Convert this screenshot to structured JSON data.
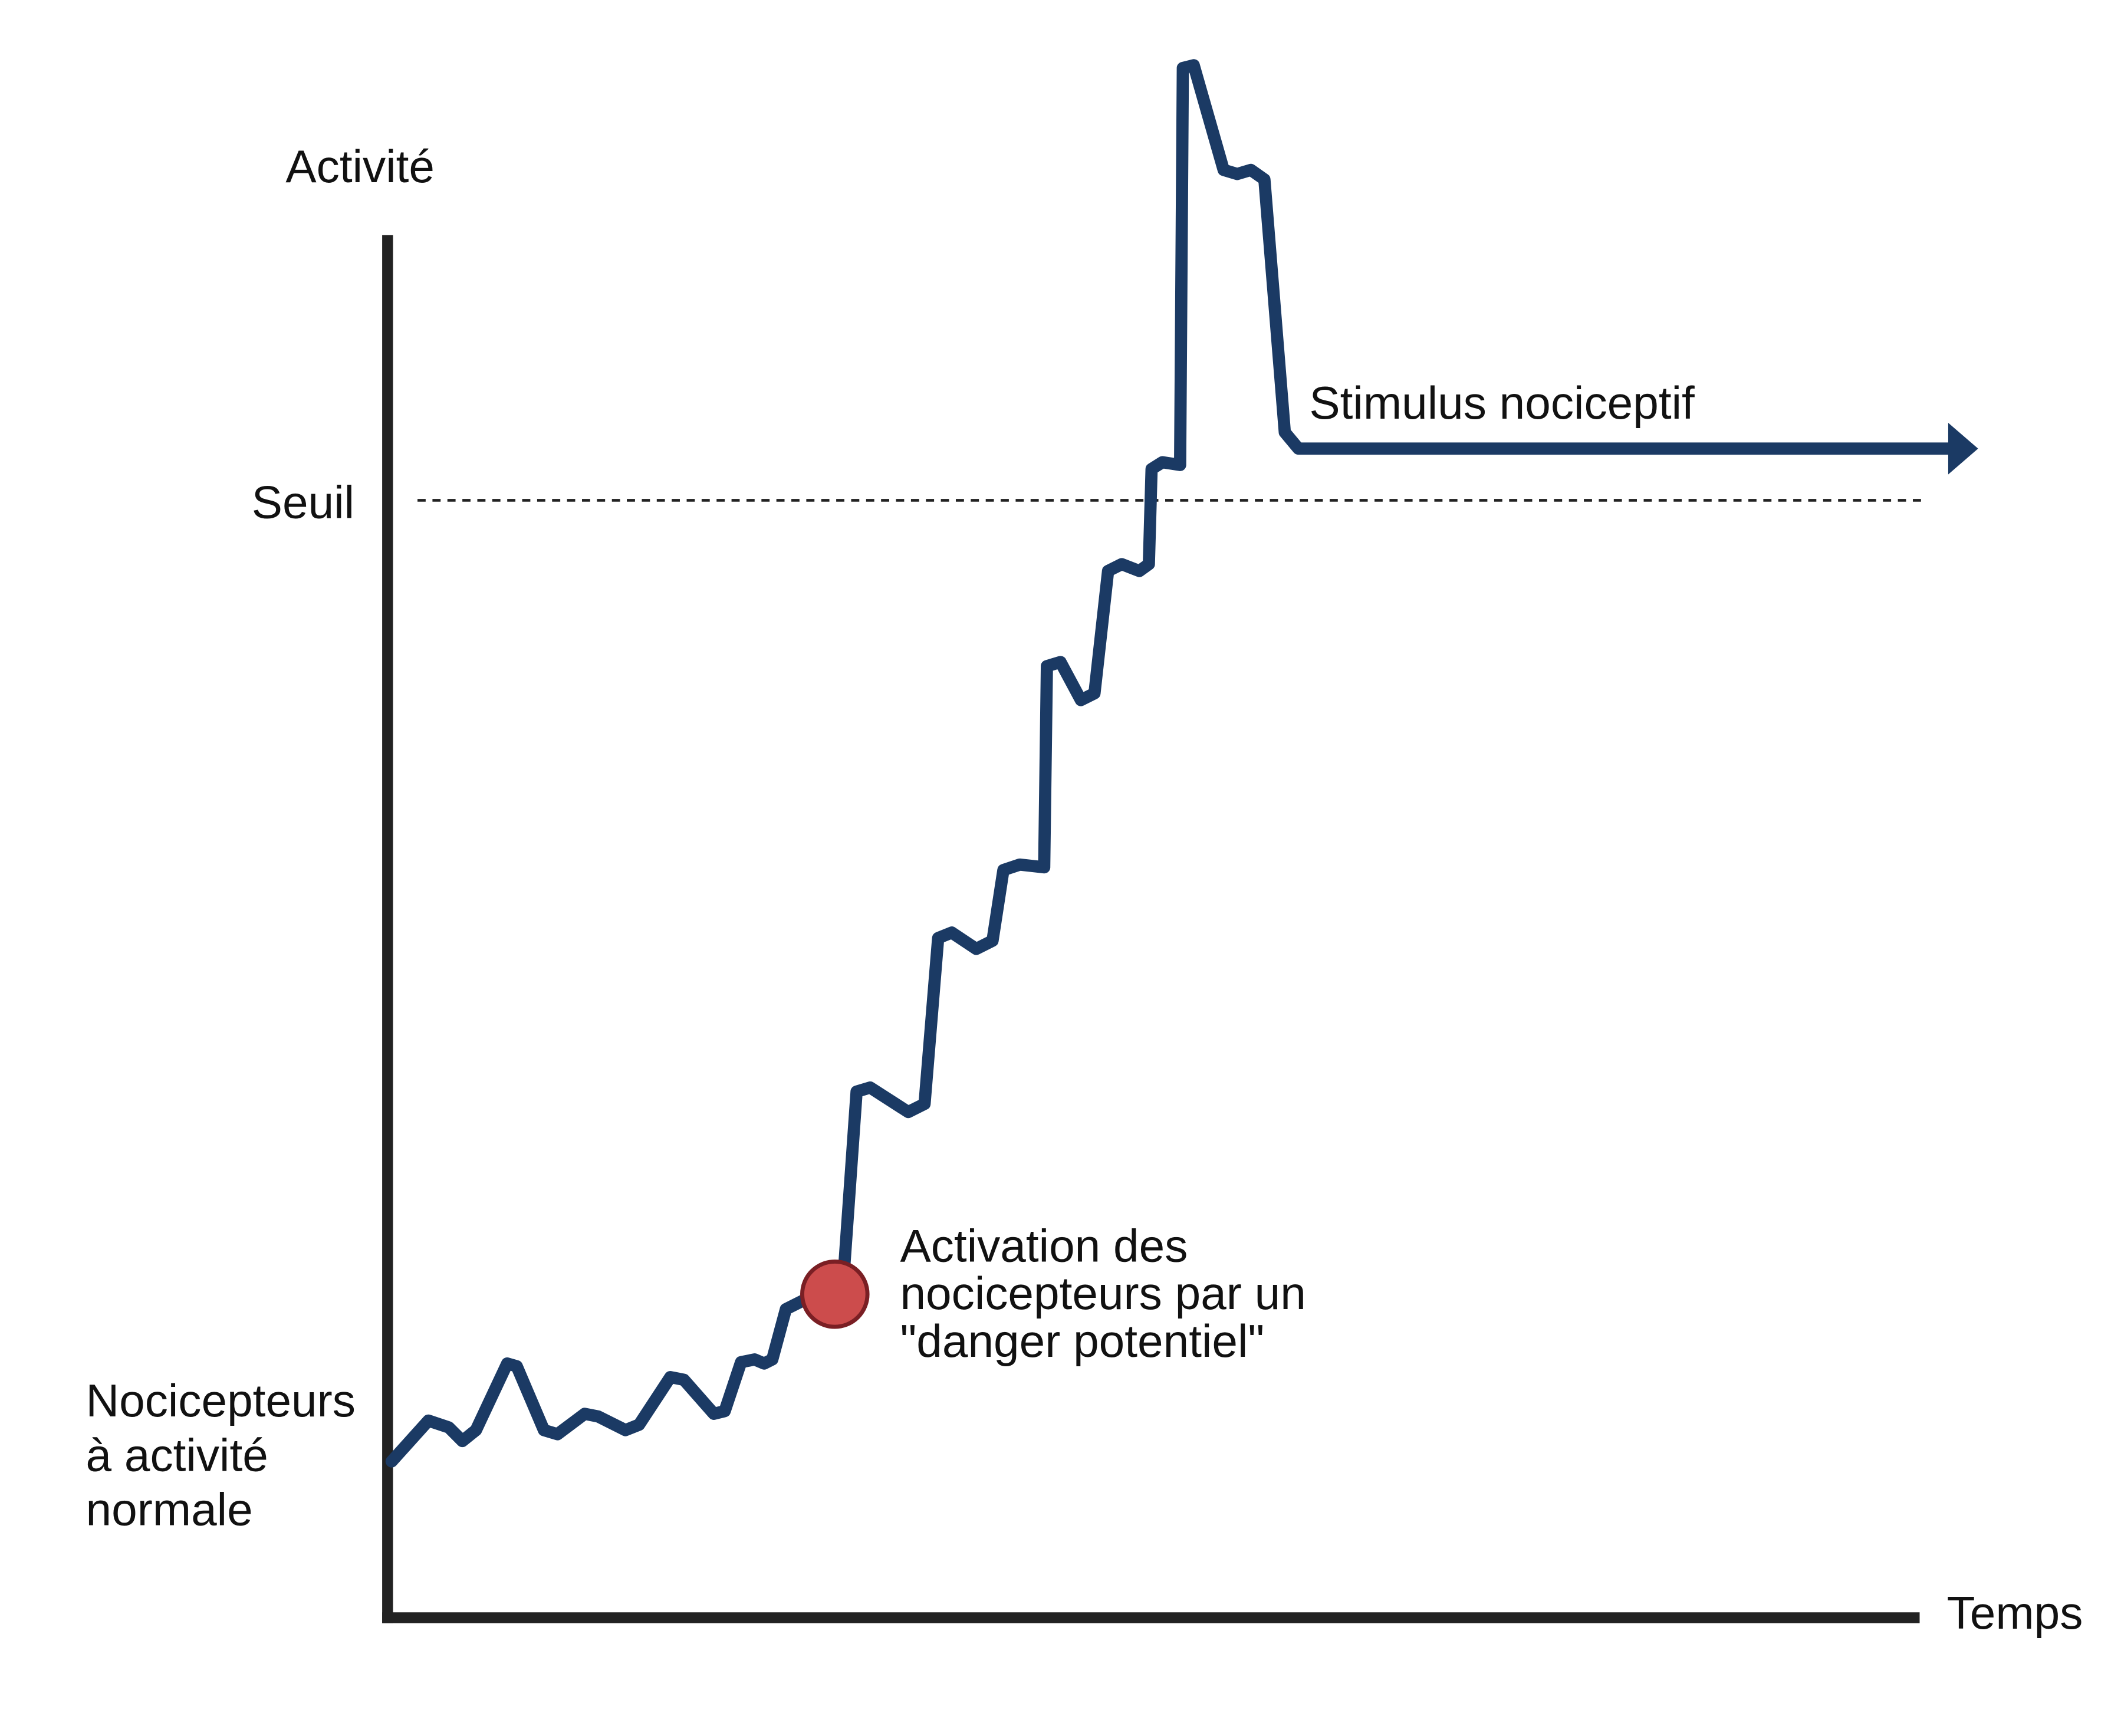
{
  "axes": {
    "y_label": "Activité",
    "x_label": "Temps"
  },
  "threshold": {
    "label": "Seuil"
  },
  "baseline_label": {
    "lines": [
      "Nocicepteurs",
      "à activité",
      "normale"
    ]
  },
  "activation_label": {
    "lines": [
      "Activation des",
      "nocicepteurs par un",
      "\"danger potentiel\""
    ]
  },
  "stimulus_label": "Stimulus nociceptif"
}
